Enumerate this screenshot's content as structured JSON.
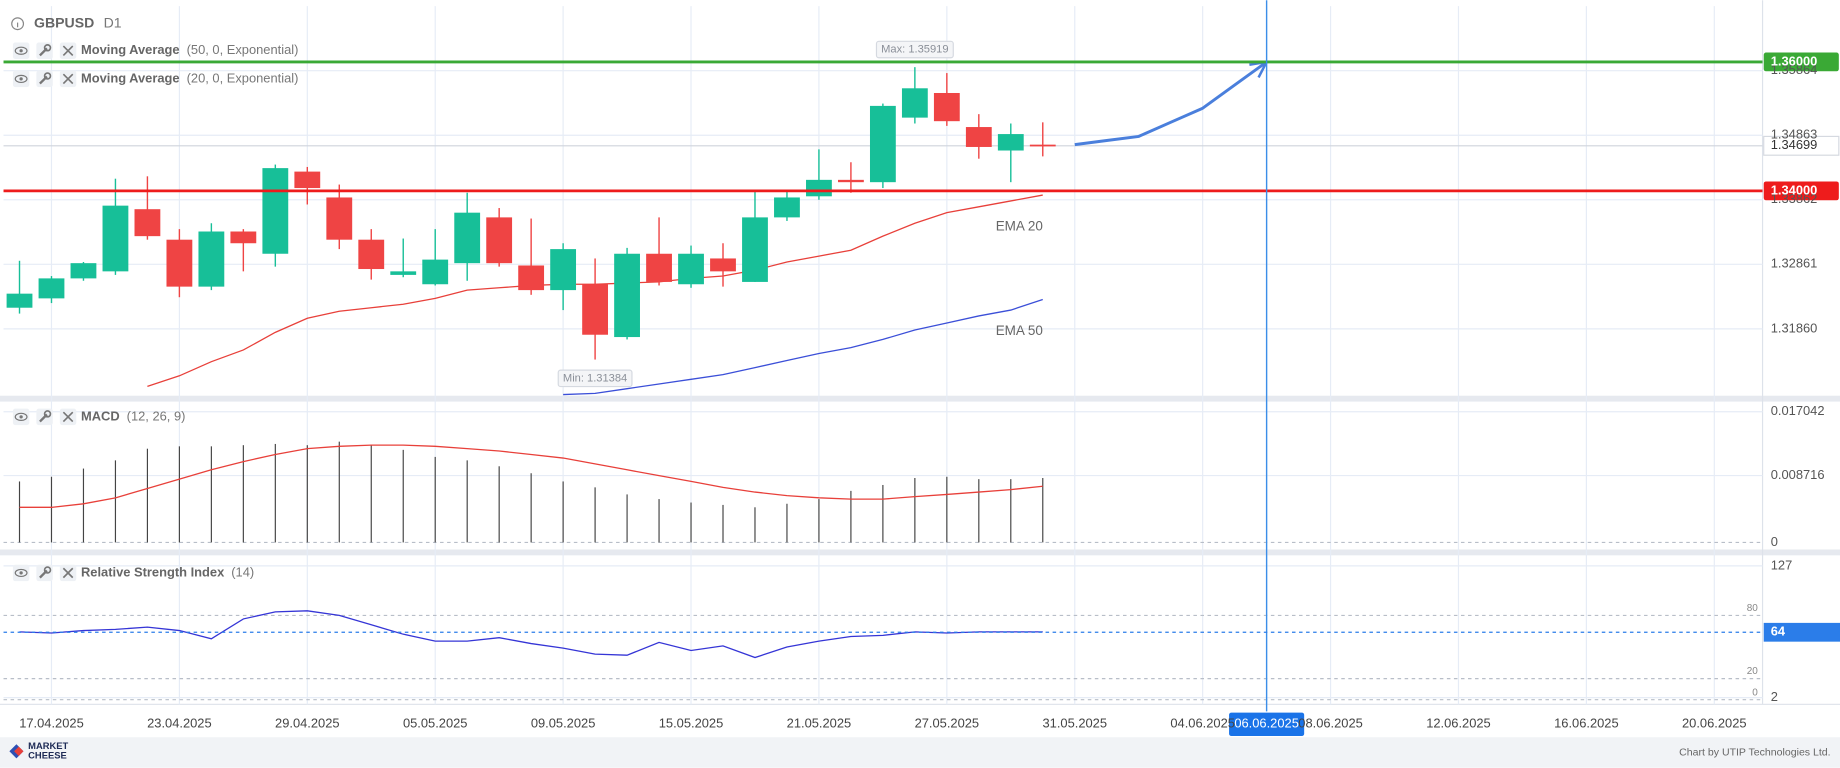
{
  "chart_data": [
    {
      "type": "candlestick",
      "title": "GBPUSD",
      "subtitle": "D1",
      "indicators": [
        {
          "name": "Moving Average",
          "params": "(50, 0, Exponential)"
        },
        {
          "name": "Moving Average",
          "params": "(20, 0, Exponential)"
        }
      ],
      "categories": [
        null,
        "17.04.2025",
        null,
        null,
        null,
        "23.04.2025",
        null,
        null,
        null,
        "29.04.2025",
        null,
        null,
        null,
        "05.05.2025",
        null,
        null,
        null,
        "09.05.2025",
        null,
        null,
        null,
        "15.05.2025",
        null,
        null,
        null,
        "21.05.2025",
        null,
        null,
        null,
        "27.05.2025",
        null,
        null,
        null,
        "31.05.2025",
        null,
        null,
        null,
        "04.06.2025",
        null,
        "06.06.2025",
        null,
        "08.06.2025",
        null,
        null,
        null,
        "12.06.2025",
        null,
        null,
        null,
        "16.06.2025",
        null,
        null,
        null,
        "20.06.2025",
        null
      ],
      "open": [
        1.32188,
        1.32333,
        1.32643,
        1.32752,
        1.33716,
        1.33243,
        1.32515,
        1.3337,
        1.33025,
        1.34299,
        1.33898,
        1.33243,
        1.32697,
        1.32552,
        1.32879,
        1.33589,
        1.32843,
        1.32461,
        1.32552,
        1.31733,
        1.33025,
        1.32552,
        1.32952,
        1.32588,
        1.33589,
        1.33916,
        1.34171,
        1.34135,
        1.35136,
        1.35518,
        1.3499,
        1.34626,
        1.34717,
        null,
        null,
        null,
        null,
        null,
        null,
        null,
        null,
        null,
        null,
        null,
        null,
        null,
        null,
        null,
        null,
        null,
        null,
        null,
        null,
        null,
        null
      ],
      "high": [
        1.32916,
        1.32679,
        1.32897,
        1.34189,
        1.34226,
        1.33407,
        1.33498,
        1.33407,
        1.34408,
        1.34371,
        1.34098,
        1.33407,
        1.33261,
        1.33407,
        1.33971,
        1.33734,
        1.33571,
        1.33188,
        1.32952,
        1.33116,
        1.33589,
        1.33152,
        1.33188,
        1.34007,
        1.33989,
        1.34644,
        1.34444,
        1.35354,
        1.35919,
        1.35827,
        1.3519,
        1.35045,
        1.35063,
        null,
        null,
        null,
        null,
        null,
        null,
        null,
        null,
        null,
        null,
        null,
        null,
        null,
        null,
        null,
        null,
        null,
        null,
        null,
        null,
        null,
        null
      ],
      "low": [
        1.32097,
        1.3226,
        1.32606,
        1.32697,
        1.33243,
        1.32351,
        1.32461,
        1.32752,
        1.32825,
        1.33789,
        1.33097,
        1.32624,
        1.32661,
        1.32533,
        1.32606,
        1.32825,
        1.32388,
        1.32151,
        1.31384,
        1.31696,
        1.32533,
        1.32497,
        1.32515,
        1.32588,
        1.33534,
        1.33862,
        1.33971,
        1.34044,
        1.35045,
        1.35008,
        1.34499,
        1.34135,
        1.34535,
        null,
        null,
        null,
        null,
        null,
        null,
        null,
        null,
        null,
        null,
        null,
        null,
        null,
        null,
        null,
        null,
        null,
        null,
        null,
        null,
        null,
        null
      ],
      "close": [
        1.32406,
        1.32643,
        1.32879,
        1.33771,
        1.33298,
        1.32515,
        1.3337,
        1.33188,
        1.34353,
        1.34044,
        1.33243,
        1.32788,
        1.32752,
        1.32934,
        1.33662,
        1.32879,
        1.32461,
        1.33097,
        1.31769,
        1.33025,
        1.32588,
        1.33025,
        1.32752,
        1.33589,
        1.33898,
        1.34171,
        1.34135,
        1.35318,
        1.35591,
        1.35081,
        1.34681,
        1.34881,
        1.34699,
        null,
        null,
        null,
        null,
        null,
        null,
        null,
        null,
        null,
        null,
        null,
        null,
        null,
        null,
        null,
        null,
        null,
        null,
        null,
        null,
        null,
        null
      ],
      "up_color": "#17bf98",
      "down_color": "#ef4444",
      "lines": [
        {
          "name": "EMA 20",
          "color": "#e8403a",
          "values": [
            null,
            null,
            null,
            null,
            1.30968,
            1.31132,
            1.31351,
            1.31532,
            1.31805,
            1.32024,
            1.32133,
            1.32188,
            1.32242,
            1.32333,
            1.32461,
            1.32497,
            1.32533,
            1.32552,
            1.32552,
            1.3257,
            1.32588,
            1.32643,
            1.32679,
            1.3277,
            1.32897,
            1.32988,
            1.33079,
            1.33298,
            1.33498,
            1.33662,
            1.33753,
            1.33844,
            1.33935,
            null,
            null,
            null,
            null,
            null,
            null,
            null,
            null,
            null,
            null,
            null,
            null,
            null,
            null,
            null,
            null,
            null,
            null,
            null,
            null,
            null,
            null
          ]
        },
        {
          "name": "EMA 50",
          "color": "#3b4fd8",
          "values": [
            null,
            null,
            null,
            null,
            null,
            null,
            null,
            null,
            null,
            null,
            null,
            null,
            null,
            null,
            null,
            null,
            null,
            1.30841,
            1.30859,
            1.30932,
            1.31005,
            1.31078,
            1.3115,
            1.3126,
            1.31369,
            1.31478,
            1.31569,
            1.31696,
            1.31842,
            1.31951,
            1.3206,
            1.32151,
            1.32315,
            null,
            null,
            null,
            null,
            null,
            null,
            null,
            null,
            null,
            null,
            null,
            null,
            null,
            null,
            null,
            null,
            null,
            null,
            null,
            null,
            null,
            null
          ]
        }
      ],
      "forecast": {
        "color": "#4a7fdc",
        "values": [
          null,
          null,
          null,
          null,
          null,
          null,
          null,
          null,
          null,
          null,
          null,
          null,
          null,
          null,
          null,
          null,
          null,
          null,
          null,
          null,
          null,
          null,
          null,
          null,
          null,
          null,
          null,
          null,
          null,
          null,
          null,
          null,
          null,
          1.34717,
          1.34781,
          1.34845,
          1.35063,
          1.35281,
          1.35641,
          1.36,
          null,
          null,
          null,
          null,
          null,
          null,
          null,
          null,
          null,
          null,
          null,
          null,
          null,
          null,
          null
        ]
      },
      "levels": [
        {
          "value": 1.36,
          "label": "1.36000",
          "color": "#3aa935"
        },
        {
          "value": 1.34,
          "label": "1.34000",
          "color": "#ee1c1c"
        }
      ],
      "last_price": 1.34699,
      "annotations": [
        "Max: 1.35919",
        "Min: 1.31384"
      ],
      "crosshair_index": 39,
      "ylim": [
        1.30823,
        1.36865
      ],
      "yticks": [
        {
          "value": 1.3186,
          "label": "1.31860"
        },
        1.32861,
        1.33862,
        1.34863,
        1.35864
      ],
      "grid": true
    },
    {
      "type": "macd",
      "title": "MACD",
      "subtitle": "(12, 26, 9)",
      "values": [
        0.00795,
        0.00856,
        0.00963,
        0.0107,
        0.01222,
        0.01253,
        0.01253,
        0.01268,
        0.01284,
        0.01268,
        0.01314,
        0.01268,
        0.01207,
        0.01115,
        0.0107,
        0.00993,
        0.00902,
        0.00795,
        0.00718,
        0.00626,
        0.00565,
        0.0052,
        0.00489,
        0.00458,
        0.00504,
        0.00565,
        0.00672,
        0.00749,
        0.0084,
        0.00856,
        0.00825,
        0.00825,
        0.0084
      ],
      "signal": [
        0.00458,
        0.00458,
        0.00504,
        0.00581,
        0.00703,
        0.00825,
        0.00947,
        0.01054,
        0.01146,
        0.01222,
        0.01253,
        0.01268,
        0.01268,
        0.01253,
        0.01222,
        0.01192,
        0.01146,
        0.011,
        0.01024,
        0.00947,
        0.00871,
        0.00795,
        0.00718,
        0.00657,
        0.00611,
        0.00581,
        0.00565,
        0.00565,
        0.00596,
        0.00626,
        0.00657,
        0.00688,
        0.00733
      ],
      "color": "#444444",
      "signal_color": "#e8403a",
      "ylim": [
        -0.00092,
        0.01821
      ],
      "yticks": [
        0.017042,
        0.008716,
        0
      ],
      "grid": true
    },
    {
      "type": "rsi",
      "title": "Relative Strength Index",
      "subtitle": "(14)",
      "values": [
        64.4,
        63.3,
        65.6,
        66.7,
        68.9,
        65.6,
        57.8,
        76.7,
        83.3,
        84.4,
        80,
        71.1,
        62.2,
        55.6,
        55.6,
        58.9,
        53.3,
        48.9,
        43.3,
        42.2,
        54.4,
        46.7,
        51.1,
        40,
        50,
        55.6,
        60,
        61.1,
        64.4,
        63.3,
        64.4,
        64.4,
        64.4
      ],
      "color": "#3535d6",
      "current": 64,
      "current_color": "#2b7de9",
      "levels": [
        80,
        20,
        0
      ],
      "ylim": [
        -4.4,
        135.9
      ],
      "yticks": [
        127,
        2
      ],
      "grid": true
    }
  ],
  "footer": {
    "brand": [
      "MARKET",
      "CHEESE"
    ],
    "credit": "Chart by UTIP Technologies Ltd."
  }
}
